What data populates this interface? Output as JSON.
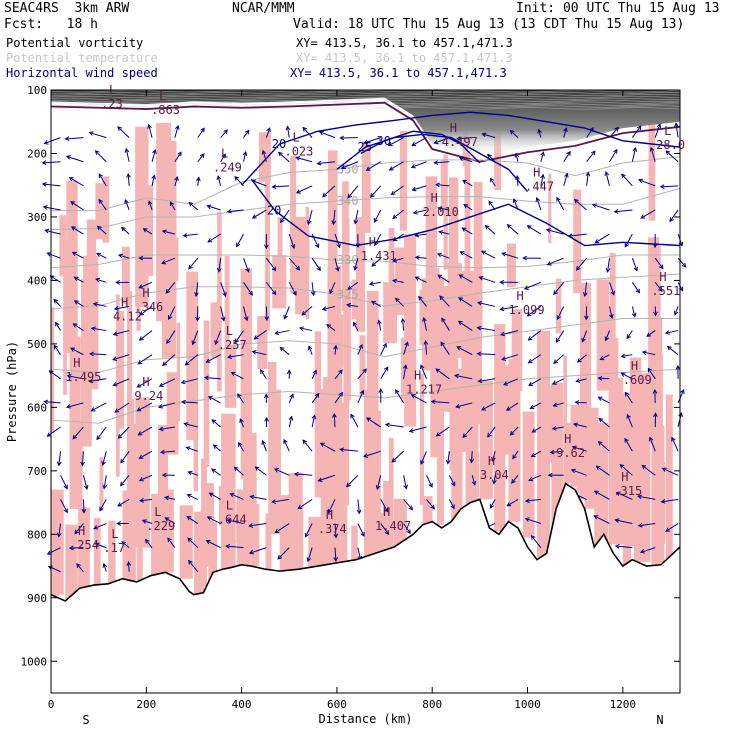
{
  "header": {
    "model": "SEAC4RS  3km ARW",
    "org": "NCAR/MMM",
    "init": "Init: 00 UTC Thu 15 Aug 13",
    "fcst": "Fcst:   18 h",
    "valid": "Valid: 18 UTC Thu 15 Aug 13 (13 CDT Thu 15 Aug 13)"
  },
  "legend": [
    {
      "name": "Potential vorticity",
      "xy": "XY= 413.5, 36.1 to 457.1,471.3",
      "color": "#000000"
    },
    {
      "name": "Potential temperature",
      "xy": "XY= 413.5, 36.1 to 457.1,471.3",
      "color": "#c8c8c8"
    },
    {
      "name": "Horizontal wind speed",
      "xy": "XY= 413.5, 36.1 to 457.1,471.3",
      "color": "#00007a"
    }
  ],
  "colors": {
    "pv": "#c0c0c0",
    "pv_high": "#5a1a4a",
    "theta": "#b4b4b4",
    "wind": "#00008b",
    "terrain": "#000000",
    "precip": "#f5b5b5",
    "strat": "#404040"
  },
  "chart_data": {
    "type": "heatmap",
    "title": "",
    "xlabel": "Distance (km)",
    "ylabel": "Pressure (hPa)",
    "xlim": [
      0,
      1320
    ],
    "ylim": [
      1050,
      100
    ],
    "x_ticks": [
      0,
      200,
      400,
      600,
      800,
      1000,
      1200
    ],
    "y_ticks": [
      100,
      200,
      300,
      400,
      500,
      600,
      700,
      800,
      900,
      1000
    ],
    "x_end_labels": {
      "left": "S",
      "right": "N"
    },
    "theta_contours": [
      {
        "label": "350",
        "p": [
          290,
          290,
          270,
          280,
          245,
          230,
          225,
          215,
          210,
          210,
          215,
          235,
          215,
          205
        ]
      },
      {
        "label": "340",
        "p": [
          320,
          318,
          300,
          300,
          290,
          280,
          275,
          270,
          268,
          268,
          275,
          280,
          280,
          255
        ]
      },
      {
        "label": "330",
        "p": [
          380,
          375,
          360,
          360,
          360,
          362,
          368,
          370,
          378,
          380,
          378,
          370,
          360,
          360
        ]
      },
      {
        "label": "325",
        "p": [
          445,
          440,
          420,
          410,
          410,
          412,
          422,
          440,
          432,
          420,
          410,
          400,
          395,
          390
        ]
      },
      {
        "label": "",
        "p": [
          540,
          545,
          525,
          520,
          500,
          495,
          500,
          520,
          505,
          490,
          480,
          470,
          460,
          460
        ]
      },
      {
        "label": "",
        "p": [
          620,
          625,
          600,
          590,
          580,
          575,
          580,
          585,
          575,
          565,
          555,
          550,
          545,
          540
        ]
      }
    ],
    "theta_x": [
      0,
      100,
      200,
      300,
      400,
      500,
      600,
      700,
      800,
      900,
      1000,
      1100,
      1200,
      1320
    ],
    "wind_speed_contours": [
      {
        "label": "20",
        "x": [
          400,
          480,
          560,
          640,
          720,
          800,
          880,
          960,
          1040,
          1120,
          1200,
          1320
        ],
        "p": [
          250,
          185,
          165,
          155,
          148,
          140,
          135,
          140,
          150,
          160,
          180,
          190
        ]
      },
      {
        "label": "25",
        "x": [
          600,
          660,
          720,
          780,
          840,
          900,
          960,
          1000
        ],
        "p": [
          225,
          190,
          175,
          170,
          175,
          200,
          225,
          260
        ]
      },
      {
        "label": "30",
        "x": [
          650,
          700,
          760,
          820,
          860,
          900
        ],
        "p": [
          200,
          180,
          165,
          170,
          185,
          215
        ]
      },
      {
        "label": "20",
        "x": [
          420,
          470,
          540,
          640,
          720,
          800,
          880,
          960,
          1040,
          1120,
          1200,
          1320
        ],
        "p": [
          240,
          290,
          330,
          345,
          335,
          320,
          300,
          280,
          310,
          345,
          340,
          345
        ]
      }
    ],
    "pv_labels": [
      {
        "type": "H",
        "value": "4.497",
        "x": 820,
        "p": 185
      },
      {
        "type": "L",
        "value": "28.0",
        "x": 1270,
        "p": 190
      },
      {
        "type": "L",
        "value": ".863",
        "x": 210,
        "p": 135
      },
      {
        "type": "L",
        "value": ".23",
        "x": 105,
        "p": 125
      },
      {
        "type": "L",
        "value": ".023",
        "x": 490,
        "p": 200
      },
      {
        "type": "L",
        "value": ".249",
        "x": 340,
        "p": 225
      },
      {
        "type": "H",
        "value": "2.010",
        "x": 780,
        "p": 295
      },
      {
        "type": "H",
        "value": ".447",
        "x": 995,
        "p": 255
      },
      {
        "type": "H",
        "value": "1.431",
        "x": 650,
        "p": 365
      },
      {
        "type": "H",
        "value": ".551",
        "x": 1260,
        "p": 420
      },
      {
        "type": "H",
        "value": "4.12",
        "x": 130,
        "p": 460
      },
      {
        "type": "H",
        "value": ".346",
        "x": 175,
        "p": 445
      },
      {
        "type": "L",
        "value": ".257",
        "x": 350,
        "p": 505
      },
      {
        "type": "H",
        "value": "1.099",
        "x": 960,
        "p": 450
      },
      {
        "type": "H",
        "value": "1.495",
        "x": 30,
        "p": 555
      },
      {
        "type": "H",
        "value": "9.24",
        "x": 175,
        "p": 585
      },
      {
        "type": "H",
        "value": "1.217",
        "x": 745,
        "p": 575
      },
      {
        "type": "H",
        "value": ".609",
        "x": 1200,
        "p": 560
      },
      {
        "type": "H",
        "value": "9.62",
        "x": 1060,
        "p": 675
      },
      {
        "type": "H",
        "value": "3.04",
        "x": 900,
        "p": 710
      },
      {
        "type": "H",
        "value": ".315",
        "x": 1180,
        "p": 735
      },
      {
        "type": "L",
        "value": ".644",
        "x": 350,
        "p": 780
      },
      {
        "type": "L",
        "value": ".229",
        "x": 200,
        "p": 790
      },
      {
        "type": "H",
        "value": ".374",
        "x": 560,
        "p": 795
      },
      {
        "type": "H",
        "value": "1.407",
        "x": 680,
        "p": 790
      },
      {
        "type": "H",
        "value": ".254",
        "x": 40,
        "p": 820
      },
      {
        "type": "L",
        "value": ".17",
        "x": 110,
        "p": 825
      }
    ],
    "terrain_x": [
      0,
      30,
      60,
      90,
      120,
      150,
      180,
      210,
      240,
      270,
      290,
      300,
      320,
      340,
      360,
      380,
      400,
      420,
      450,
      480,
      520,
      560,
      600,
      640,
      680,
      720,
      760,
      780,
      800,
      820,
      840,
      860,
      880,
      900,
      920,
      940,
      960,
      980,
      1000,
      1020,
      1040,
      1060,
      1080,
      1100,
      1120,
      1140,
      1160,
      1180,
      1200,
      1220,
      1250,
      1280,
      1320
    ],
    "terrain_p": [
      895,
      905,
      885,
      880,
      878,
      870,
      875,
      865,
      860,
      870,
      890,
      895,
      892,
      860,
      855,
      852,
      848,
      850,
      855,
      858,
      855,
      850,
      845,
      840,
      830,
      820,
      800,
      785,
      780,
      790,
      780,
      760,
      750,
      745,
      790,
      800,
      780,
      790,
      820,
      840,
      830,
      760,
      720,
      730,
      760,
      820,
      800,
      830,
      850,
      840,
      850,
      848,
      820
    ]
  }
}
